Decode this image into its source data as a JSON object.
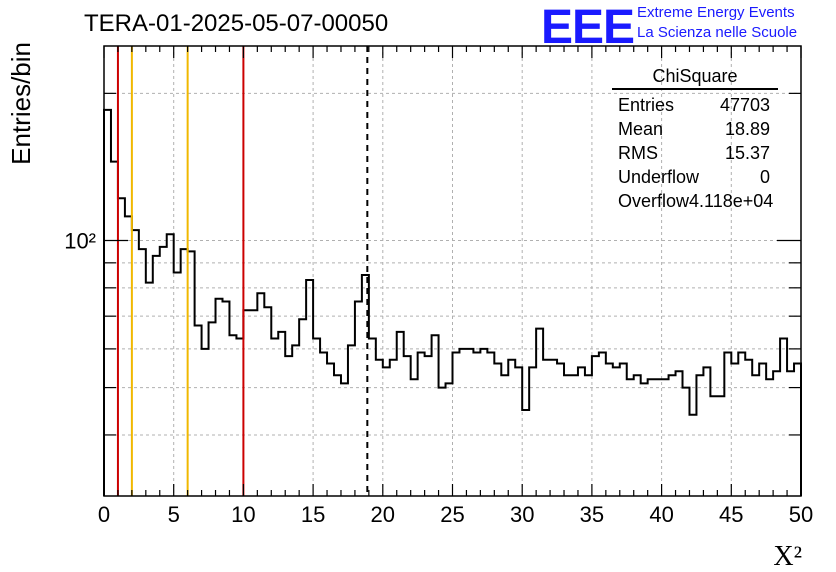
{
  "title": "TERA-01-2025-05-07-00050",
  "logo": {
    "text": "EEE",
    "line1": "Extreme Energy Events",
    "line2": "La Scienza nelle Scuole",
    "color": "#1a1aff"
  },
  "stats": {
    "title": "ChiSquare",
    "rows": [
      {
        "label": "Entries",
        "value": "47703"
      },
      {
        "label": "Mean",
        "value": "18.89"
      },
      {
        "label": "RMS",
        "value": "15.37"
      },
      {
        "label": "Underflow",
        "value": "0"
      },
      {
        "label": "Overflow",
        "value": "4.118e+04"
      }
    ]
  },
  "chart_data": {
    "type": "histogram",
    "xlabel": "X²",
    "ylabel": "Entries/bin",
    "xlim": [
      0,
      50
    ],
    "ylim": [
      30,
      250
    ],
    "yscale": "log",
    "grid": true,
    "x_ticks": [
      "0",
      "5",
      "10",
      "15",
      "20",
      "25",
      "30",
      "35",
      "40",
      "45",
      "50"
    ],
    "y_tick_label": "10²",
    "bin_width": 0.5,
    "bin_edges_start": 0,
    "values": [
      185,
      145,
      122,
      112,
      105,
      96,
      82,
      93,
      97,
      103,
      86,
      96,
      95,
      67,
      60,
      68,
      76,
      75,
      64,
      63,
      72,
      72,
      78,
      73,
      63,
      65,
      58,
      61,
      69,
      83,
      63,
      59,
      56,
      53,
      51,
      61,
      75,
      85,
      63,
      57,
      55,
      57,
      65,
      58,
      52,
      59,
      58,
      64,
      50,
      51,
      59,
      60,
      60,
      59,
      60,
      59,
      56,
      53,
      57,
      55,
      45,
      55,
      66,
      57,
      57,
      56,
      53,
      53,
      55,
      53,
      58,
      59,
      56,
      55,
      56,
      52,
      53,
      51,
      52,
      52,
      52,
      53,
      54,
      50,
      44,
      53,
      55,
      48,
      48,
      59,
      56,
      59,
      57,
      53,
      56,
      52,
      54,
      63,
      54,
      56
    ],
    "vertical_lines": [
      {
        "x": 1,
        "color": "#cc0000",
        "style": "solid"
      },
      {
        "x": 2,
        "color": "#f0b800",
        "style": "solid"
      },
      {
        "x": 6,
        "color": "#f0b800",
        "style": "solid"
      },
      {
        "x": 10,
        "color": "#cc0000",
        "style": "solid"
      },
      {
        "x": 18.89,
        "color": "#000000",
        "style": "dashed"
      }
    ]
  }
}
